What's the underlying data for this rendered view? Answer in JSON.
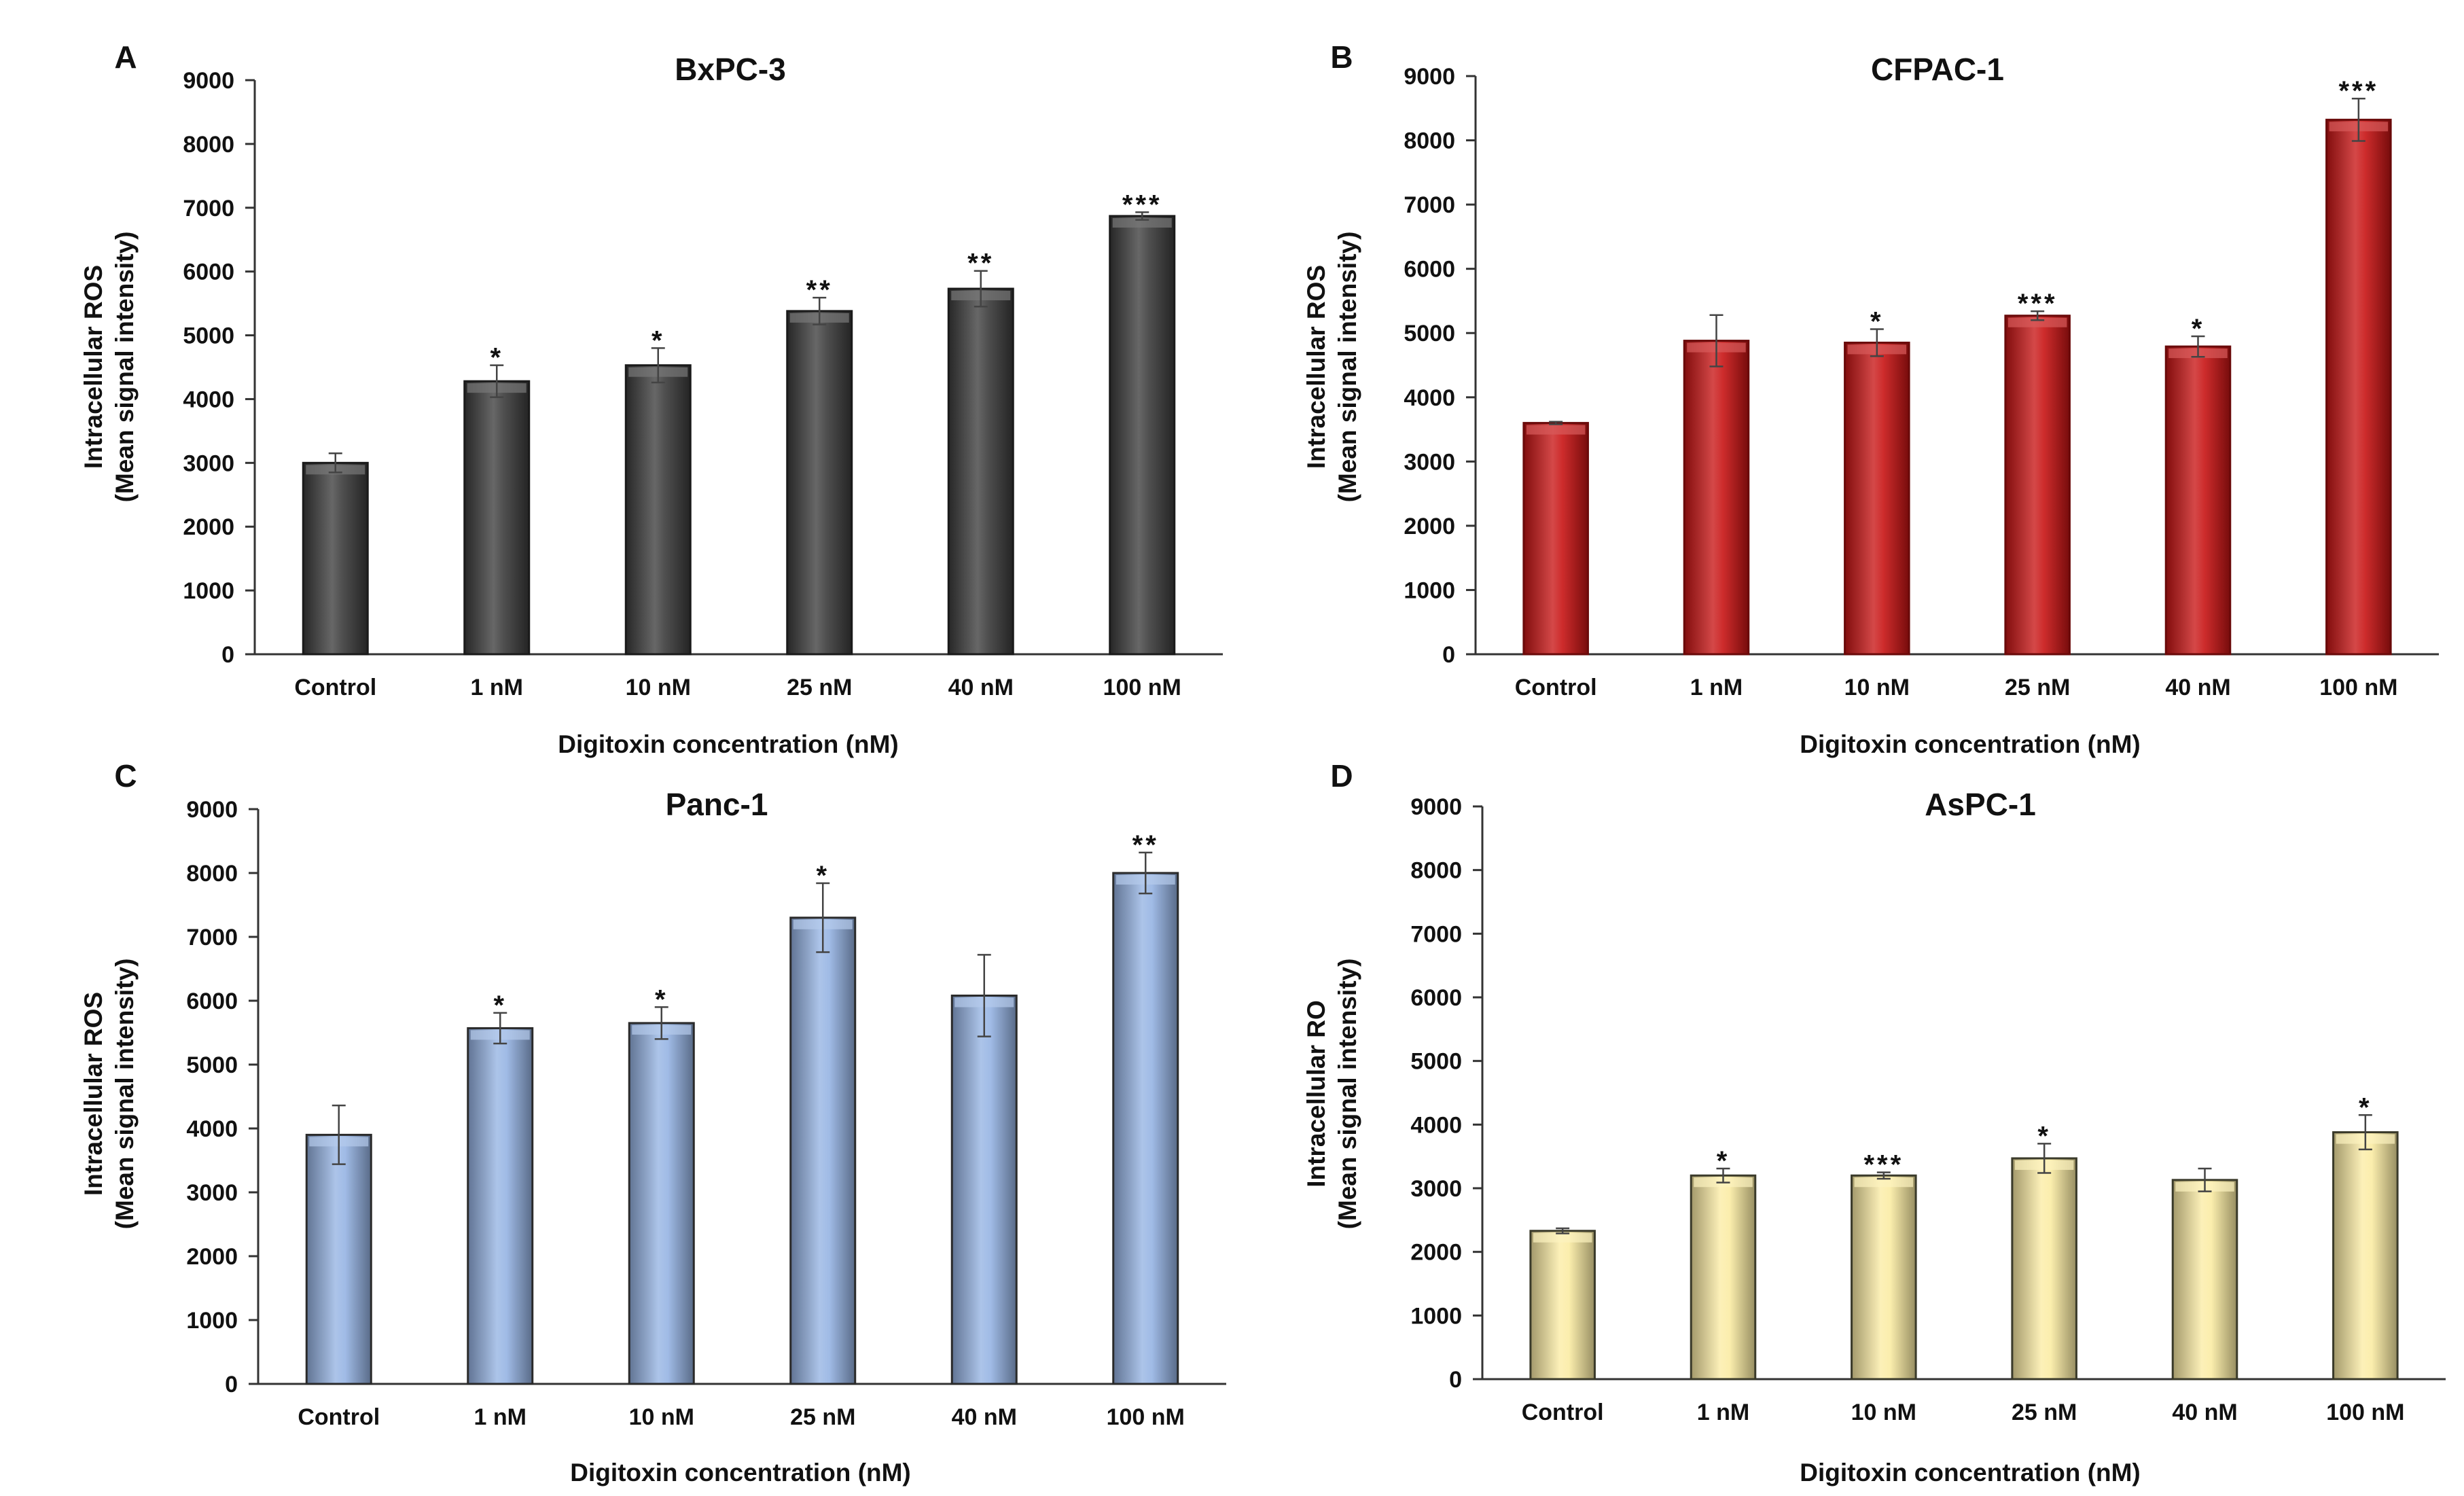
{
  "chart_data": [
    {
      "type": "bar",
      "panel": "A",
      "title": "BxPC-3",
      "xlabel": "Digitoxin concentration (nM)",
      "ylabel_line1": "Intracellular ROS",
      "ylabel_line2": "(Mean signal intensity)",
      "ylim": [
        0,
        9000
      ],
      "yticks": [
        "0",
        "1000",
        "2000",
        "3000",
        "4000",
        "5000",
        "6000",
        "7000",
        "8000",
        "9000"
      ],
      "categories": [
        "Control",
        "1 nM",
        "10 nM",
        "25 nM",
        "40 nM",
        "100 nM"
      ],
      "values": [
        3000,
        4280,
        4530,
        5380,
        5730,
        6870
      ],
      "errors": [
        150,
        250,
        270,
        210,
        280,
        60
      ],
      "significance": [
        "",
        "*",
        "*",
        "**",
        "**",
        "***"
      ],
      "bar_color": "#3c3c3c",
      "bar_border": "#1a1a1a"
    },
    {
      "type": "bar",
      "panel": "B",
      "title": "CFPAC-1",
      "xlabel": "Digitoxin concentration (nM)",
      "ylabel_line1": "Intracellular ROS",
      "ylabel_line2": "(Mean signal intensity)",
      "ylim": [
        0,
        9000
      ],
      "yticks": [
        "0",
        "1000",
        "2000",
        "3000",
        "4000",
        "5000",
        "6000",
        "7000",
        "8000",
        "9000"
      ],
      "categories": [
        "Control",
        "1 nM",
        "10 nM",
        "25 nM",
        "40 nM",
        "100 nM"
      ],
      "values": [
        3600,
        4880,
        4850,
        5270,
        4790,
        8320
      ],
      "errors": [
        20,
        400,
        210,
        70,
        160,
        330
      ],
      "significance": [
        "",
        "",
        "*",
        "***",
        "*",
        "***"
      ],
      "bar_color": "#c81414",
      "bar_border": "#6a0a0a"
    },
    {
      "type": "bar",
      "panel": "C",
      "title": "Panc-1",
      "xlabel": "Digitoxin concentration (nM)",
      "ylabel_line1": "Intracellular ROS",
      "ylabel_line2": "(Mean signal intensity)",
      "ylim": [
        0,
        9000
      ],
      "yticks": [
        "0",
        "1000",
        "2000",
        "3000",
        "4000",
        "5000",
        "6000",
        "7000",
        "8000",
        "9000"
      ],
      "categories": [
        "Control",
        "1 nM",
        "10 nM",
        "25 nM",
        "40 nM",
        "100 nM"
      ],
      "values": [
        3900,
        5570,
        5650,
        7300,
        6080,
        8000
      ],
      "errors": [
        460,
        240,
        250,
        540,
        640,
        320
      ],
      "significance": [
        "",
        "*",
        "*",
        "*",
        "",
        "**"
      ],
      "bar_color": "#95b3e3",
      "bar_border": "#2a2a2a"
    },
    {
      "type": "bar",
      "panel": "D",
      "title": "AsPC-1",
      "xlabel": "Digitoxin concentration (nM)",
      "ylabel_line1": "Intracellular RO",
      "ylabel_line2": "(Mean signal intensity)",
      "ylim": [
        0,
        9000
      ],
      "yticks": [
        "0",
        "1000",
        "2000",
        "3000",
        "4000",
        "5000",
        "6000",
        "7000",
        "8000",
        "9000"
      ],
      "categories": [
        "Control",
        "1 nM",
        "10 nM",
        "25 nM",
        "40 nM",
        "100 nM"
      ],
      "values": [
        2330,
        3200,
        3200,
        3470,
        3130,
        3880
      ],
      "errors": [
        40,
        110,
        50,
        230,
        180,
        270
      ],
      "significance": [
        "",
        "*",
        "***",
        "*",
        "",
        "*"
      ],
      "bar_color": "#fbeca4",
      "bar_border": "#3a3a2a"
    }
  ]
}
